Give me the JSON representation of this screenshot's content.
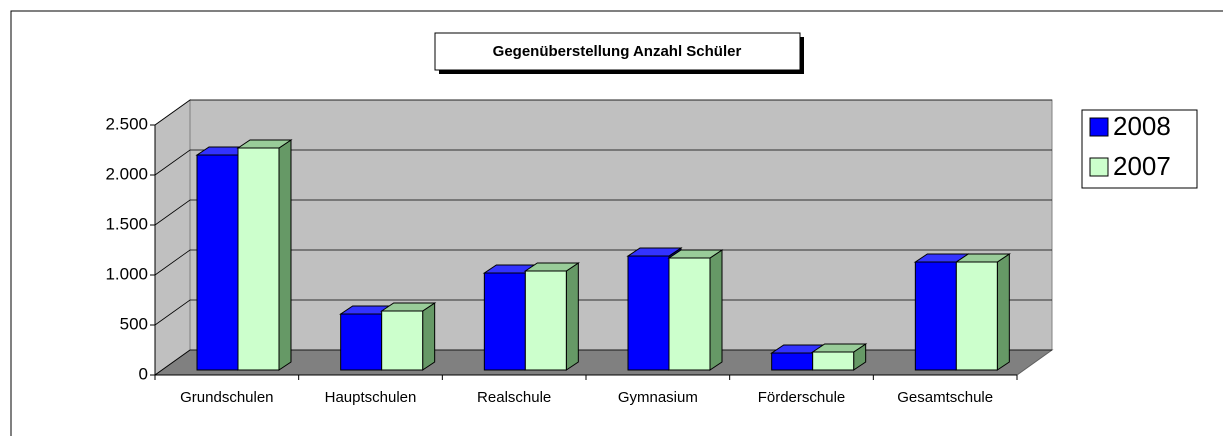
{
  "chart_data": {
    "type": "bar3d",
    "title": "Gegenüberstellung Anzahl Schüler",
    "categories": [
      "Grundschulen",
      "Hauptschulen",
      "Realschule",
      "Gymnasium",
      "Förderschule",
      "Gesamtschule"
    ],
    "series": [
      {
        "name": "2008",
        "color": "#0000ff",
        "values": [
          2150,
          560,
          970,
          1140,
          170,
          1080
        ]
      },
      {
        "name": "2007",
        "color": "#ccffcc",
        "values": [
          2220,
          590,
          990,
          1120,
          180,
          1080
        ]
      }
    ],
    "ylim": [
      0,
      2500
    ],
    "yticks": [
      0,
      500,
      {
        "value": 1000,
        "label": "1.000"
      },
      {
        "value": 1500,
        "label": "1.500"
      },
      {
        "value": 2000,
        "label": "2.000"
      },
      {
        "value": 2500,
        "label": "2.500"
      }
    ],
    "grid": true,
    "legend": "right"
  }
}
